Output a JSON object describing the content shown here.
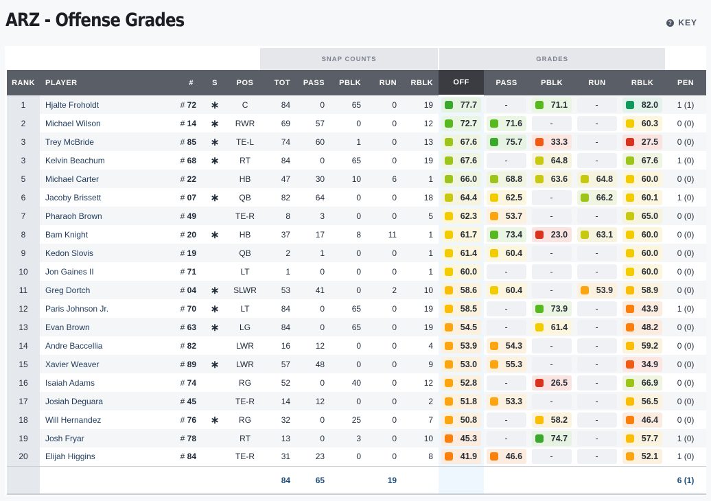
{
  "header": {
    "title": "ARZ - Offense Grades",
    "key_label": "KEY"
  },
  "groups": {
    "snap_counts": "SNAP COUNTS",
    "grades": "GRADES"
  },
  "columns": [
    "RANK",
    "PLAYER",
    "#",
    "S",
    "POS",
    "TOT",
    "PASS",
    "PBLK",
    "RUN",
    "RBLK",
    "OFF",
    "PASS",
    "PBLK",
    "RUN",
    "RBLK",
    "PEN"
  ],
  "rows": [
    {
      "rank": "1",
      "name": "Hjalte Froholdt",
      "num": "72",
      "s": "*",
      "pos": "C",
      "tot": "84",
      "pass": "0",
      "pblk": "65",
      "run": "0",
      "rblk": "19",
      "g_off": "77.7",
      "g_pass": "-",
      "g_pblk": "71.1",
      "g_run": "-",
      "g_rblk": "82.0",
      "pen": "1 (1)"
    },
    {
      "rank": "2",
      "name": "Michael Wilson",
      "num": "14",
      "s": "*",
      "pos": "RWR",
      "tot": "69",
      "pass": "57",
      "pblk": "0",
      "run": "0",
      "rblk": "12",
      "g_off": "72.7",
      "g_pass": "71.6",
      "g_pblk": "-",
      "g_run": "-",
      "g_rblk": "60.3",
      "pen": "0 (0)"
    },
    {
      "rank": "3",
      "name": "Trey McBride",
      "num": "85",
      "s": "*",
      "pos": "TE-L",
      "tot": "74",
      "pass": "60",
      "pblk": "1",
      "run": "0",
      "rblk": "13",
      "g_off": "67.6",
      "g_pass": "75.7",
      "g_pblk": "33.3",
      "g_run": "-",
      "g_rblk": "27.5",
      "pen": "0 (0)"
    },
    {
      "rank": "3",
      "name": "Kelvin Beachum",
      "num": "68",
      "s": "*",
      "pos": "RT",
      "tot": "84",
      "pass": "0",
      "pblk": "65",
      "run": "0",
      "rblk": "19",
      "g_off": "67.6",
      "g_pass": "-",
      "g_pblk": "64.8",
      "g_run": "-",
      "g_rblk": "67.6",
      "pen": "1 (0)"
    },
    {
      "rank": "5",
      "name": "Michael Carter",
      "num": "22",
      "s": "",
      "pos": "HB",
      "tot": "47",
      "pass": "30",
      "pblk": "10",
      "run": "6",
      "rblk": "1",
      "g_off": "66.0",
      "g_pass": "68.8",
      "g_pblk": "63.6",
      "g_run": "64.8",
      "g_rblk": "60.0",
      "pen": "0 (0)"
    },
    {
      "rank": "6",
      "name": "Jacoby Brissett",
      "num": "07",
      "s": "*",
      "pos": "QB",
      "tot": "82",
      "pass": "64",
      "pblk": "0",
      "run": "0",
      "rblk": "18",
      "g_off": "64.4",
      "g_pass": "62.5",
      "g_pblk": "-",
      "g_run": "66.2",
      "g_rblk": "60.1",
      "pen": "1 (0)"
    },
    {
      "rank": "7",
      "name": "Pharaoh Brown",
      "num": "49",
      "s": "",
      "pos": "TE-R",
      "tot": "8",
      "pass": "3",
      "pblk": "0",
      "run": "0",
      "rblk": "5",
      "g_off": "62.3",
      "g_pass": "53.7",
      "g_pblk": "-",
      "g_run": "-",
      "g_rblk": "65.0",
      "pen": "0 (0)"
    },
    {
      "rank": "8",
      "name": "Bam Knight",
      "num": "20",
      "s": "*",
      "pos": "HB",
      "tot": "37",
      "pass": "17",
      "pblk": "8",
      "run": "11",
      "rblk": "1",
      "g_off": "61.7",
      "g_pass": "73.4",
      "g_pblk": "23.0",
      "g_run": "63.1",
      "g_rblk": "60.0",
      "pen": "0 (0)"
    },
    {
      "rank": "9",
      "name": "Kedon Slovis",
      "num": "19",
      "s": "",
      "pos": "QB",
      "tot": "2",
      "pass": "1",
      "pblk": "0",
      "run": "0",
      "rblk": "1",
      "g_off": "61.4",
      "g_pass": "60.4",
      "g_pblk": "-",
      "g_run": "-",
      "g_rblk": "60.0",
      "pen": "0 (0)"
    },
    {
      "rank": "10",
      "name": "Jon Gaines II",
      "num": "71",
      "s": "",
      "pos": "LT",
      "tot": "1",
      "pass": "0",
      "pblk": "0",
      "run": "0",
      "rblk": "1",
      "g_off": "60.0",
      "g_pass": "-",
      "g_pblk": "-",
      "g_run": "-",
      "g_rblk": "60.0",
      "pen": "0 (0)"
    },
    {
      "rank": "11",
      "name": "Greg Dortch",
      "num": "04",
      "s": "*",
      "pos": "SLWR",
      "tot": "53",
      "pass": "41",
      "pblk": "0",
      "run": "2",
      "rblk": "10",
      "g_off": "58.6",
      "g_pass": "60.4",
      "g_pblk": "-",
      "g_run": "53.9",
      "g_rblk": "58.9",
      "pen": "0 (0)"
    },
    {
      "rank": "12",
      "name": "Paris Johnson Jr.",
      "num": "70",
      "s": "*",
      "pos": "LT",
      "tot": "84",
      "pass": "0",
      "pblk": "65",
      "run": "0",
      "rblk": "19",
      "g_off": "58.5",
      "g_pass": "-",
      "g_pblk": "73.9",
      "g_run": "-",
      "g_rblk": "43.9",
      "pen": "1 (0)"
    },
    {
      "rank": "13",
      "name": "Evan Brown",
      "num": "63",
      "s": "*",
      "pos": "LG",
      "tot": "84",
      "pass": "0",
      "pblk": "65",
      "run": "0",
      "rblk": "19",
      "g_off": "54.5",
      "g_pass": "-",
      "g_pblk": "61.4",
      "g_run": "-",
      "g_rblk": "48.2",
      "pen": "0 (0)"
    },
    {
      "rank": "14",
      "name": "Andre Baccellia",
      "num": "82",
      "s": "",
      "pos": "LWR",
      "tot": "16",
      "pass": "12",
      "pblk": "0",
      "run": "0",
      "rblk": "4",
      "g_off": "53.9",
      "g_pass": "54.3",
      "g_pblk": "-",
      "g_run": "-",
      "g_rblk": "59.2",
      "pen": "0 (0)"
    },
    {
      "rank": "15",
      "name": "Xavier Weaver",
      "num": "89",
      "s": "*",
      "pos": "LWR",
      "tot": "57",
      "pass": "48",
      "pblk": "0",
      "run": "0",
      "rblk": "9",
      "g_off": "53.0",
      "g_pass": "55.3",
      "g_pblk": "-",
      "g_run": "-",
      "g_rblk": "34.9",
      "pen": "0 (0)"
    },
    {
      "rank": "16",
      "name": "Isaiah Adams",
      "num": "74",
      "s": "",
      "pos": "RG",
      "tot": "52",
      "pass": "0",
      "pblk": "40",
      "run": "0",
      "rblk": "12",
      "g_off": "52.8",
      "g_pass": "-",
      "g_pblk": "26.5",
      "g_run": "-",
      "g_rblk": "66.9",
      "pen": "0 (0)"
    },
    {
      "rank": "17",
      "name": "Josiah Deguara",
      "num": "45",
      "s": "",
      "pos": "TE-R",
      "tot": "14",
      "pass": "12",
      "pblk": "0",
      "run": "0",
      "rblk": "2",
      "g_off": "51.8",
      "g_pass": "53.3",
      "g_pblk": "-",
      "g_run": "-",
      "g_rblk": "56.5",
      "pen": "0 (0)"
    },
    {
      "rank": "18",
      "name": "Will Hernandez",
      "num": "76",
      "s": "*",
      "pos": "RG",
      "tot": "32",
      "pass": "0",
      "pblk": "25",
      "run": "0",
      "rblk": "7",
      "g_off": "50.8",
      "g_pass": "-",
      "g_pblk": "58.2",
      "g_run": "-",
      "g_rblk": "46.4",
      "pen": "0 (0)"
    },
    {
      "rank": "19",
      "name": "Josh Fryar",
      "num": "78",
      "s": "",
      "pos": "RT",
      "tot": "13",
      "pass": "0",
      "pblk": "3",
      "run": "0",
      "rblk": "10",
      "g_off": "45.3",
      "g_pass": "-",
      "g_pblk": "74.7",
      "g_run": "-",
      "g_rblk": "57.7",
      "pen": "1 (0)"
    },
    {
      "rank": "20",
      "name": "Elijah Higgins",
      "num": "84",
      "s": "",
      "pos": "TE-R",
      "tot": "31",
      "pass": "23",
      "pblk": "0",
      "run": "0",
      "rblk": "8",
      "g_off": "41.9",
      "g_pass": "46.6",
      "g_pblk": "-",
      "g_run": "-",
      "g_rblk": "52.1",
      "pen": "1 (0)"
    }
  ],
  "totals": {
    "tot": "84",
    "pass": "65",
    "run": "19",
    "pen": "6 (1)"
  }
}
